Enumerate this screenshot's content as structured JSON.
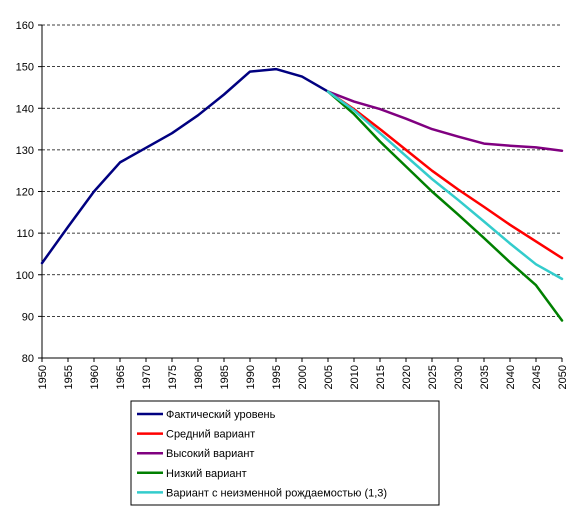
{
  "chart_data": {
    "type": "line",
    "title": "",
    "xlabel": "",
    "ylabel": "",
    "ylim": [
      80,
      160
    ],
    "y_ticks": [
      80,
      90,
      100,
      110,
      120,
      130,
      140,
      150,
      160
    ],
    "x_ticks": [
      1950,
      1955,
      1960,
      1965,
      1970,
      1975,
      1980,
      1985,
      1990,
      1995,
      2000,
      2005,
      2010,
      2015,
      2020,
      2025,
      2030,
      2035,
      2040,
      2045,
      2050
    ],
    "xlim": [
      1950,
      2050
    ],
    "grid": "horizontal dashed",
    "legend_position": "bottom",
    "series": [
      {
        "name": "Фактический уровень",
        "color": "#000080",
        "x": [
          1950,
          1955,
          1960,
          1965,
          1970,
          1975,
          1980,
          1985,
          1990,
          1995,
          2000,
          2005
        ],
        "y": [
          102.8,
          111.5,
          120.0,
          127.0,
          130.5,
          134.0,
          138.3,
          143.3,
          148.8,
          149.4,
          147.6,
          144.0
        ]
      },
      {
        "name": "Средний вариант",
        "color": "#ff0000",
        "x": [
          2005,
          2010,
          2015,
          2020,
          2025,
          2030,
          2035,
          2040,
          2045,
          2050
        ],
        "y": [
          144.0,
          139.8,
          135.0,
          130.0,
          125.0,
          120.5,
          116.3,
          112.0,
          108.0,
          104.0
        ]
      },
      {
        "name": "Высокий вариант",
        "color": "#800080",
        "x": [
          2005,
          2010,
          2015,
          2020,
          2025,
          2030,
          2035,
          2040,
          2045,
          2050
        ],
        "y": [
          144.0,
          141.6,
          139.8,
          137.5,
          135.0,
          133.2,
          131.5,
          131.0,
          130.6,
          129.8
        ]
      },
      {
        "name": "Низкий вариант",
        "color": "#008000",
        "x": [
          2005,
          2010,
          2015,
          2020,
          2025,
          2030,
          2035,
          2040,
          2045,
          2050
        ],
        "y": [
          144.0,
          138.6,
          132.0,
          126.0,
          120.0,
          114.5,
          108.8,
          103.0,
          97.5,
          89.0
        ]
      },
      {
        "name": "Вариант с неизменной рождаемостью (1,3)",
        "color": "#33cccc",
        "x": [
          2005,
          2010,
          2015,
          2020,
          2025,
          2030,
          2035,
          2040,
          2045,
          2050
        ],
        "y": [
          144.0,
          139.5,
          134.0,
          128.5,
          123.0,
          118.0,
          112.8,
          107.5,
          102.5,
          99.0
        ]
      }
    ]
  }
}
